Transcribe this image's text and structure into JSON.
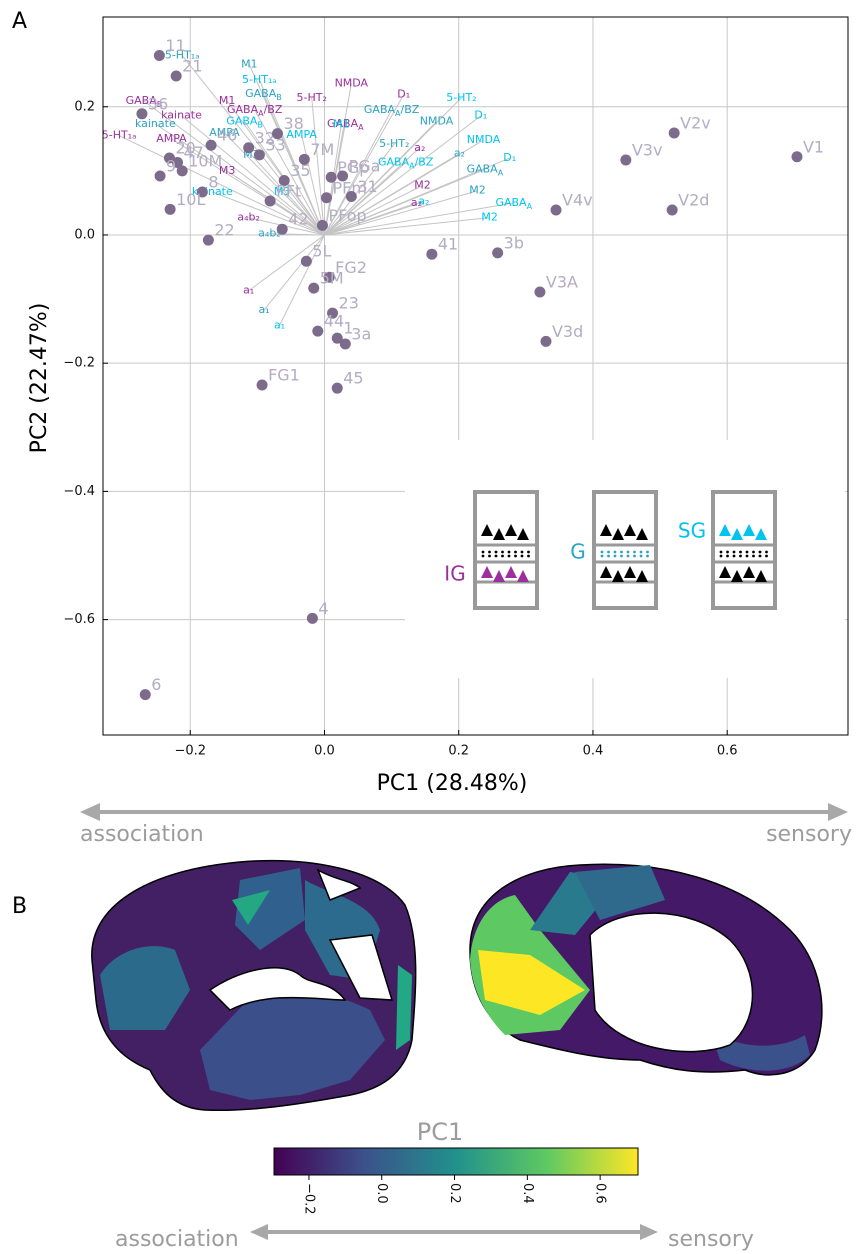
{
  "chart_data": [
    {
      "type": "scatter",
      "panel_label": "A",
      "x_label": "PC1 (28.48%)",
      "y_label": "PC2 (22.47%)",
      "arrow_labels": [
        "association",
        "sensory"
      ],
      "xlim": [
        -0.33,
        0.78
      ],
      "ylim": [
        -0.78,
        0.34
      ],
      "grid": true,
      "xticks": [
        {
          "value": -0.2,
          "label": "−0.2"
        },
        {
          "value": 0,
          "label": "0.0"
        },
        0.2,
        0.4,
        0.6
      ],
      "yticks": [
        {
          "value": -0.6,
          "label": "−0.6"
        },
        {
          "value": -0.4,
          "label": "−0.4"
        },
        {
          "value": -0.2,
          "label": "−0.2"
        },
        {
          "value": 0,
          "label": "0.0"
        },
        0.2
      ],
      "points": {
        "color": "#7d6b8c",
        "labels": [
          "11",
          "21",
          "36",
          "20",
          "47",
          "9",
          "10M",
          "8",
          "10L",
          "22",
          "46",
          "32",
          "38",
          "33",
          "35",
          "7M",
          "PGp",
          "PGa",
          "PFt",
          "42",
          "PFm",
          "PFop",
          "31",
          "5L",
          "FG2",
          "5M",
          "23",
          "44",
          "1",
          "3a",
          "FG1",
          "45",
          "4",
          "6",
          "41",
          "3b",
          "V4v",
          "V3A",
          "V3d",
          "V3v",
          "V2v",
          "V2d",
          "V1"
        ],
        "x": [
          -0.246,
          -0.221,
          -0.272,
          -0.231,
          -0.219,
          -0.245,
          -0.212,
          -0.182,
          -0.23,
          -0.173,
          -0.169,
          -0.113,
          -0.07,
          -0.097,
          -0.06,
          -0.03,
          0.01,
          0.027,
          -0.081,
          -0.063,
          0.003,
          -0.003,
          0.04,
          -0.027,
          0.007,
          -0.016,
          0.012,
          -0.01,
          0.019,
          0.031,
          -0.093,
          0.019,
          -0.018,
          -0.267,
          0.16,
          0.258,
          0.345,
          0.321,
          0.33,
          0.449,
          0.521,
          0.518,
          0.704
        ],
        "y": [
          0.28,
          0.248,
          0.189,
          0.12,
          0.113,
          0.092,
          0.1,
          0.067,
          0.04,
          -0.008,
          0.14,
          0.136,
          0.158,
          0.125,
          0.085,
          0.118,
          0.09,
          0.092,
          0.053,
          0.009,
          0.058,
          0.015,
          0.06,
          -0.041,
          -0.066,
          -0.083,
          -0.122,
          -0.15,
          -0.161,
          -0.17,
          -0.234,
          -0.239,
          -0.598,
          -0.717,
          -0.03,
          -0.028,
          0.039,
          -0.089,
          -0.166,
          0.117,
          0.159,
          0.039,
          0.122
        ]
      },
      "series": [
        {
          "name": "IG",
          "color": "#9b2f9b",
          "labels": [
            {
              "text": "NMDA"
            },
            {
              "text": "M1"
            },
            {
              "text": "5-HT₂"
            },
            {
              "text": "D₁"
            },
            {
              "text": "kainate"
            },
            {
              "text": "GABA",
              "sub": "A",
              "tail": "/BZ"
            },
            {
              "text": "GABA",
              "sub": "B"
            },
            {
              "text": "5-HT₁ₐ"
            },
            {
              "text": "AMPA"
            },
            {
              "text": "GABA",
              "sub": "A"
            },
            {
              "text": "a₂"
            },
            {
              "text": "M3"
            },
            {
              "text": "M2"
            },
            {
              "text": "a₂"
            },
            {
              "text": "a₄b₂"
            },
            {
              "text": "a₁"
            }
          ],
          "x": [
            0.04,
            -0.145,
            -0.019,
            0.118,
            -0.213,
            -0.104,
            -0.269,
            -0.306,
            -0.228,
            0.031,
            0.142,
            -0.145,
            0.146,
            0.137,
            -0.113,
            -0.113
          ],
          "y": [
            0.236,
            0.209,
            0.214,
            0.219,
            0.186,
            0.195,
            0.209,
            0.155,
            0.15,
            0.173,
            0.136,
            0.1,
            0.077,
            0.05,
            0.027,
            -0.087
          ]
        },
        {
          "name": "G",
          "color": "#2aa3c4",
          "labels": [
            {
              "text": "5-HT₁ₐ"
            },
            {
              "text": "M1"
            },
            {
              "text": "GABA",
              "sub": "B"
            },
            {
              "text": "GABA",
              "sub": "A",
              "tail": "/BZ"
            },
            {
              "text": "NMDA"
            },
            {
              "text": "5-HT₂"
            },
            {
              "text": "a₂"
            },
            {
              "text": "GABA",
              "sub": "A"
            },
            {
              "text": "M2"
            },
            {
              "text": "kainate"
            },
            {
              "text": "AMPA"
            },
            {
              "text": "M3"
            },
            {
              "text": "a₄b₂"
            },
            {
              "text": "a₁"
            }
          ],
          "x": [
            -0.212,
            -0.112,
            -0.091,
            0.1,
            0.167,
            0.104,
            0.201,
            0.239,
            0.228,
            -0.252,
            -0.149,
            -0.109,
            -0.082,
            -0.09
          ],
          "y": [
            0.28,
            0.266,
            0.22,
            0.195,
            0.177,
            0.142,
            0.127,
            0.102,
            0.069,
            0.173,
            0.159,
            0.125,
            0.002,
            -0.117
          ]
        },
        {
          "name": "SG",
          "color": "#00c3ee",
          "labels": [
            {
              "text": "5-HT₁ₐ"
            },
            {
              "text": "5-HT₂"
            },
            {
              "text": "D₁"
            },
            {
              "text": "NMDA"
            },
            {
              "text": "M1"
            },
            {
              "text": "AMPA"
            },
            {
              "text": "GABA",
              "sub": "B"
            },
            {
              "text": "GABA",
              "sub": "A",
              "tail": "/BZ"
            },
            {
              "text": "D₁"
            },
            {
              "text": "kainate"
            },
            {
              "text": "M3"
            },
            {
              "text": "a₂"
            },
            {
              "text": "GABA",
              "sub": "A"
            },
            {
              "text": "M2"
            },
            {
              "text": "a₁"
            }
          ],
          "x": [
            -0.097,
            0.204,
            0.233,
            0.237,
            0.025,
            -0.034,
            -0.119,
            0.121,
            0.276,
            -0.167,
            -0.063,
            0.148,
            0.282,
            0.246,
            -0.067
          ],
          "y": [
            0.242,
            0.214,
            0.186,
            0.148,
            0.172,
            0.156,
            0.177,
            0.113,
            0.12,
            0.067,
            0.067,
            0.052,
            0.05,
            0.027,
            -0.141
          ]
        }
      ]
    },
    {
      "type": "colorbar",
      "panel_label": "B",
      "title": "PC1",
      "colormap": "viridis",
      "arrow_labels": [
        "association",
        "sensory"
      ],
      "xlim": [
        -0.296,
        0.704
      ],
      "xticks": [
        {
          "value": -0.2,
          "label": "−0.2"
        },
        {
          "value": 0,
          "label": "0.0"
        },
        0.2,
        0.4,
        0.6
      ]
    }
  ]
}
